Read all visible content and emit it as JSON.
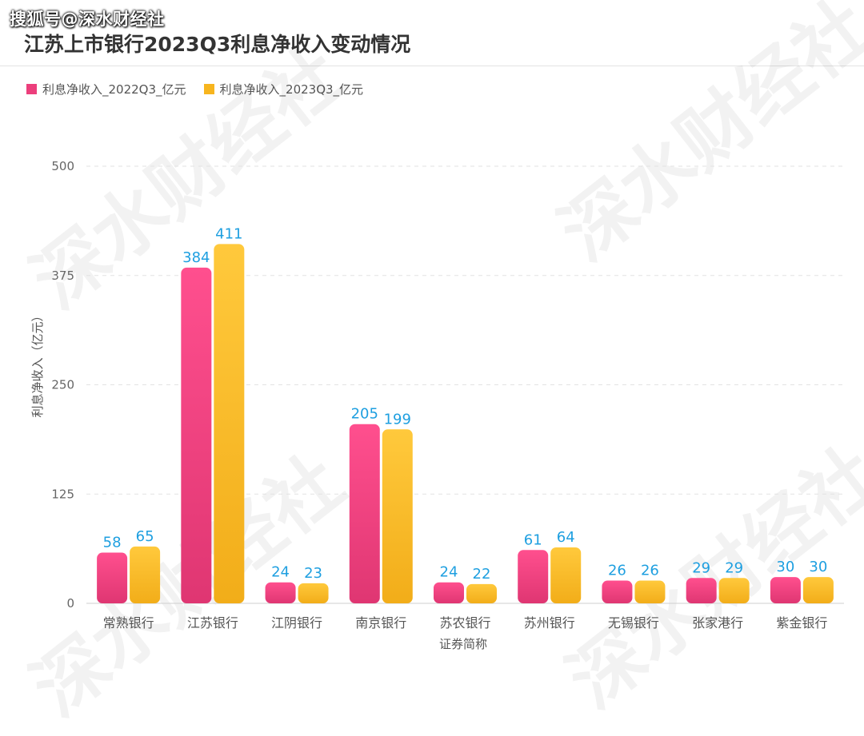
{
  "source_label": "搜狐号@深水财经社",
  "watermark_text": "深水财经社",
  "chart_data": {
    "type": "bar",
    "title": "江苏上市银行2023Q3利息净收入变动情况",
    "xlabel": "证券简称",
    "ylabel": "利息净收入（亿元）",
    "ylim": [
      0,
      500
    ],
    "yticks": [
      0,
      125,
      250,
      375,
      500
    ],
    "grid": true,
    "legend_position": "top-left",
    "categories": [
      "常熟银行",
      "江苏银行",
      "江阴银行",
      "南京银行",
      "苏农银行",
      "苏州银行",
      "无锡银行",
      "张家港行",
      "紫金银行"
    ],
    "series": [
      {
        "name": "利息净收入_2022Q3_亿元",
        "color": "#ec3f7c",
        "values": [
          58,
          384,
          24,
          205,
          24,
          61,
          26,
          29,
          30
        ]
      },
      {
        "name": "利息净收入_2023Q3_亿元",
        "color": "#f7b51e",
        "values": [
          65,
          411,
          23,
          199,
          22,
          64,
          26,
          29,
          30
        ]
      }
    ],
    "label_color": "#1e9fe0"
  }
}
